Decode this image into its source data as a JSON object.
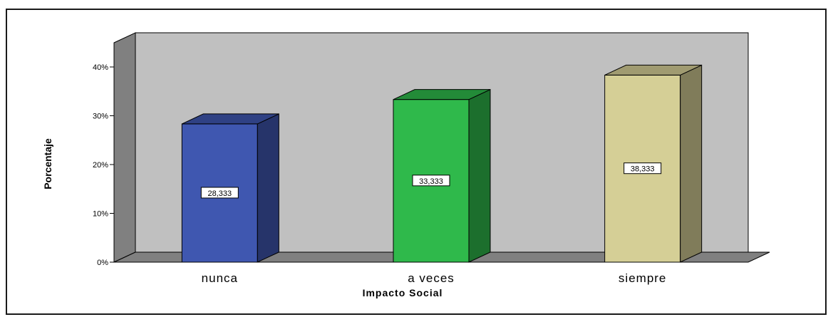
{
  "chart_data": {
    "type": "bar",
    "categories": [
      "nunca",
      "a veces",
      "siempre"
    ],
    "values": [
      28.333,
      33.333,
      38.333
    ],
    "data_labels": [
      "28,333",
      "33,333",
      "38,333"
    ],
    "colors": [
      "#3f57b0",
      "#2fb94b",
      "#d5cf96"
    ],
    "xlabel": "Impacto Social",
    "ylabel": "Porcentaje",
    "ylim": [
      0,
      40
    ],
    "yticks": [
      0,
      10,
      20,
      30,
      40
    ],
    "ytick_labels": [
      "0%",
      "10%",
      "20%",
      "30%",
      "40%"
    ],
    "grid": false,
    "style": "3d",
    "backwall_color": "#c0c0c0",
    "floor_color": "#808080"
  }
}
